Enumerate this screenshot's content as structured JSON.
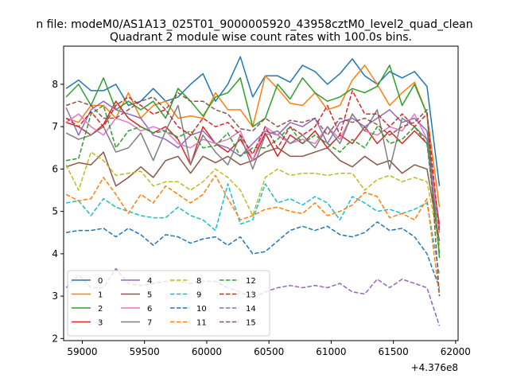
{
  "chart_data": {
    "type": "line",
    "suptitle": "n file: modeM0/AS1A13_025T01_9000005920_43958cztM0_level2_quad_clean",
    "title": "Quadrant 2 module wise count rates with 100.0s bins.",
    "xlabel": "",
    "ylabel": "",
    "x_offset_label": "+4.376e8",
    "xlim": [
      58850,
      62020
    ],
    "ylim": [
      1.95,
      8.9
    ],
    "xticks": [
      59000,
      59500,
      60000,
      60500,
      61000,
      61500,
      62000
    ],
    "yticks": [
      2,
      3,
      4,
      5,
      6,
      7,
      8
    ],
    "grid": false,
    "legend_position": "lower-left",
    "x": [
      58870,
      58970,
      59070,
      59170,
      59270,
      59370,
      59470,
      59570,
      59670,
      59770,
      59870,
      59970,
      60070,
      60170,
      60270,
      60370,
      60470,
      60570,
      60670,
      60770,
      60870,
      60970,
      61070,
      61170,
      61270,
      61370,
      61470,
      61570,
      61670,
      61770,
      61870
    ],
    "series": [
      {
        "name": "0",
        "style": "solid",
        "color": "#1f77b4",
        "values": [
          7.9,
          8.1,
          7.85,
          7.85,
          8.0,
          7.5,
          7.6,
          7.9,
          7.6,
          7.7,
          8.0,
          8.25,
          7.6,
          8.0,
          8.65,
          7.7,
          8.2,
          8.2,
          8.05,
          8.45,
          8.3,
          8.0,
          8.25,
          8.6,
          8.2,
          8.0,
          8.3,
          8.15,
          8.3,
          7.95,
          5.6
        ]
      },
      {
        "name": "1",
        "style": "solid",
        "color": "#ff7f0e",
        "values": [
          7.2,
          7.1,
          7.5,
          7.5,
          7.2,
          7.8,
          7.2,
          7.5,
          7.6,
          7.2,
          7.25,
          7.2,
          7.8,
          7.4,
          7.4,
          7.0,
          8.2,
          7.9,
          7.55,
          7.5,
          7.8,
          7.4,
          7.5,
          8.1,
          8.45,
          8.0,
          7.5,
          7.8,
          8.05,
          7.3,
          5.1
        ]
      },
      {
        "name": "2",
        "style": "solid",
        "color": "#2ca02c",
        "values": [
          7.7,
          8.0,
          7.5,
          8.15,
          7.4,
          7.6,
          7.4,
          7.6,
          7.2,
          7.9,
          7.6,
          7.25,
          7.7,
          7.8,
          8.15,
          7.0,
          7.2,
          8.0,
          7.65,
          8.15,
          7.8,
          7.6,
          7.7,
          7.9,
          7.8,
          7.95,
          8.45,
          7.5,
          8.0,
          7.3,
          3.9
        ]
      },
      {
        "name": "3",
        "style": "solid",
        "color": "#d62728",
        "values": [
          7.1,
          7.0,
          6.8,
          7.05,
          7.6,
          7.2,
          7.0,
          6.85,
          7.0,
          6.7,
          6.1,
          7.0,
          6.6,
          6.4,
          6.7,
          6.2,
          6.85,
          6.3,
          6.8,
          6.6,
          6.9,
          6.5,
          6.8,
          6.6,
          7.0,
          6.6,
          6.9,
          6.6,
          6.9,
          6.6,
          4.7
        ]
      },
      {
        "name": "4",
        "style": "solid",
        "color": "#9467bd",
        "values": [
          7.45,
          6.8,
          7.4,
          7.6,
          7.4,
          7.3,
          7.2,
          6.8,
          6.7,
          6.5,
          6.8,
          6.9,
          6.6,
          6.5,
          6.3,
          6.6,
          6.9,
          6.8,
          7.1,
          7.0,
          7.2,
          6.6,
          7.1,
          7.2,
          7.0,
          7.2,
          7.4,
          7.1,
          7.2,
          6.9,
          4.6
        ]
      },
      {
        "name": "5",
        "style": "solid",
        "color": "#8c564b",
        "values": [
          6.05,
          6.15,
          6.1,
          6.4,
          5.6,
          5.8,
          6.05,
          5.8,
          6.2,
          6.3,
          5.9,
          6.3,
          6.15,
          6.3,
          6.1,
          6.2,
          6.4,
          6.5,
          6.3,
          6.3,
          6.4,
          6.5,
          6.2,
          6.05,
          6.3,
          6.1,
          6.2,
          5.9,
          6.1,
          6.0,
          4.3
        ]
      },
      {
        "name": "6",
        "style": "solid",
        "color": "#e377c2",
        "values": [
          7.1,
          7.3,
          7.0,
          6.8,
          7.2,
          7.1,
          6.9,
          7.0,
          6.9,
          6.6,
          6.5,
          6.7,
          6.6,
          6.7,
          6.9,
          6.2,
          7.0,
          6.8,
          6.6,
          6.7,
          6.6,
          7.0,
          6.7,
          7.3,
          6.9,
          6.8,
          7.0,
          6.9,
          7.3,
          6.7,
          4.5
        ]
      },
      {
        "name": "7",
        "style": "solid",
        "color": "#7f7f7f",
        "values": [
          6.85,
          6.7,
          6.8,
          7.0,
          6.4,
          6.5,
          6.85,
          6.2,
          6.9,
          7.5,
          6.1,
          6.8,
          6.4,
          6.1,
          6.8,
          6.0,
          6.8,
          6.9,
          6.6,
          6.8,
          6.5,
          7.0,
          6.6,
          7.3,
          6.9,
          7.4,
          6.0,
          7.2,
          7.0,
          6.7,
          4.0
        ]
      },
      {
        "name": "8",
        "style": "dashed",
        "color": "#bcbd22",
        "values": [
          6.1,
          5.5,
          6.4,
          6.2,
          5.85,
          5.9,
          5.95,
          5.6,
          5.7,
          5.7,
          5.5,
          5.7,
          6.0,
          5.8,
          5.5,
          4.9,
          5.8,
          6.0,
          5.85,
          5.9,
          5.9,
          5.85,
          5.9,
          5.9,
          5.5,
          5.75,
          5.85,
          5.7,
          5.8,
          5.7,
          4.2
        ]
      },
      {
        "name": "9",
        "style": "dashed",
        "color": "#17becf",
        "values": [
          5.2,
          5.25,
          4.9,
          5.3,
          5.1,
          5.0,
          4.9,
          4.85,
          4.85,
          5.1,
          4.9,
          4.8,
          4.55,
          5.65,
          4.7,
          4.8,
          5.65,
          5.2,
          5.3,
          5.15,
          5.35,
          5.2,
          4.8,
          5.35,
          5.2,
          5.0,
          5.05,
          4.95,
          5.05,
          5.2,
          3.5
        ]
      },
      {
        "name": "10",
        "style": "dashed",
        "color": "#1f77b4",
        "values": [
          4.5,
          4.55,
          4.55,
          4.6,
          4.4,
          4.6,
          4.45,
          4.2,
          4.45,
          4.4,
          4.25,
          4.35,
          4.4,
          4.2,
          4.4,
          4.0,
          4.05,
          4.3,
          4.55,
          4.65,
          4.55,
          4.65,
          4.45,
          4.4,
          4.5,
          4.75,
          4.55,
          4.6,
          4.4,
          4.0,
          3.2
        ]
      },
      {
        "name": "11",
        "style": "dashed",
        "color": "#ff7f0e",
        "values": [
          5.4,
          5.25,
          5.3,
          5.8,
          5.4,
          4.95,
          5.4,
          5.2,
          5.6,
          5.4,
          5.2,
          5.4,
          5.85,
          5.3,
          4.8,
          4.9,
          5.05,
          5.1,
          5.0,
          4.95,
          5.2,
          4.9,
          5.0,
          5.15,
          5.45,
          5.35,
          4.85,
          4.95,
          4.8,
          5.3,
          3.0
        ]
      },
      {
        "name": "12",
        "style": "dashed",
        "color": "#2ca02c",
        "values": [
          6.2,
          6.25,
          7.3,
          7.5,
          6.5,
          6.9,
          7.0,
          6.85,
          6.9,
          6.75,
          6.9,
          6.5,
          6.55,
          6.85,
          6.3,
          6.5,
          6.5,
          6.7,
          7.0,
          6.6,
          6.8,
          6.6,
          6.4,
          6.7,
          6.5,
          7.0,
          6.6,
          6.7,
          7.0,
          6.6,
          4.0
        ]
      },
      {
        "name": "13",
        "style": "dashed",
        "color": "#d62728",
        "values": [
          7.2,
          7.0,
          7.35,
          7.0,
          7.5,
          7.7,
          7.5,
          7.3,
          7.4,
          7.0,
          6.8,
          7.2,
          7.0,
          7.1,
          6.8,
          6.35,
          7.0,
          6.5,
          7.0,
          6.8,
          7.0,
          7.5,
          6.8,
          7.85,
          7.3,
          7.3,
          7.0,
          7.3,
          7.0,
          7.3,
          4.5
        ]
      },
      {
        "name": "14",
        "style": "dashed",
        "color": "#9467bd",
        "values": [
          3.2,
          3.5,
          3.2,
          3.2,
          3.65,
          3.3,
          3.25,
          3.3,
          3.35,
          3.35,
          3.3,
          3.35,
          3.35,
          3.2,
          3.1,
          2.95,
          3.1,
          3.2,
          3.25,
          3.2,
          3.25,
          3.2,
          3.3,
          3.1,
          3.05,
          3.4,
          3.2,
          3.4,
          3.3,
          3.2,
          2.3
        ]
      },
      {
        "name": "15",
        "style": "dashed",
        "color": "#8c564b",
        "values": [
          7.5,
          7.6,
          7.5,
          7.2,
          7.2,
          7.4,
          7.6,
          7.7,
          7.4,
          7.8,
          7.6,
          7.6,
          7.4,
          7.3,
          6.95,
          6.9,
          7.2,
          7.0,
          7.15,
          7.1,
          7.2,
          6.8,
          7.2,
          7.1,
          7.2,
          7.05,
          6.8,
          7.0,
          7.1,
          7.4,
          3.0
        ]
      }
    ]
  }
}
